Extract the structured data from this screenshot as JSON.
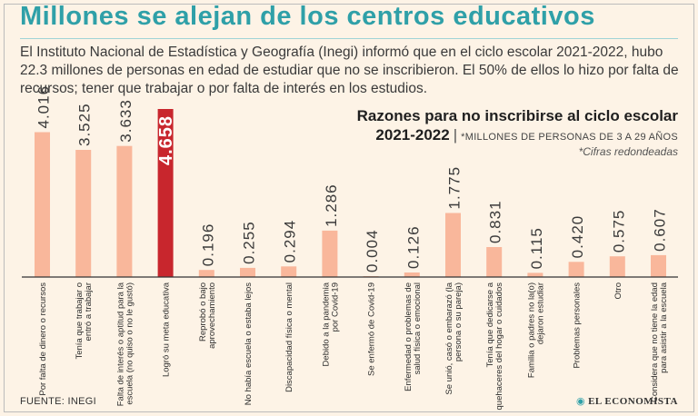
{
  "header": {
    "title": "Millones se alejan de los centros educativos",
    "intro": "El Instituto Nacional de Estadística y Geografía (Inegi) informó que en el ciclo escolar 2021-2022, hubo 22.3 millones de personas en edad de estudiar que no se inscribieron. El 50% de ellos lo hizo por falta de recursos; tener que trabajar o por falta de interés en los estudios."
  },
  "chart_data": {
    "type": "bar",
    "title": "Razones para no inscribirse al ciclo escolar",
    "title_line2": "2021-2022",
    "unit_label": "*MILLONES DE PERSONAS DE 3 A 29 AÑOS",
    "note": "*Cifras redondeadas",
    "categories": [
      [
        "Por falta de dinero o recursos"
      ],
      [
        "Tenía que trabajar o",
        "entró a trabajar"
      ],
      [
        "Falta de interés o aptitud para la",
        "escuela (no quiso o no le gustó)"
      ],
      [
        "Logró su meta educativa"
      ],
      [
        "Reprobó o bajo",
        "aprovechamiento"
      ],
      [
        "No había escuela o estaba lejos"
      ],
      [
        "Discapacidad física o mental"
      ],
      [
        "Debido a la pandemia",
        "por Covid-19"
      ],
      [
        "Se enfermó de Covid-19"
      ],
      [
        "Enfermedad o problemas de",
        "salud física o emocional"
      ],
      [
        "Se unió, casó o embarazó (la",
        "persona o su pareja)"
      ],
      [
        "Tenía que dedicarse a",
        "quehaceres del hogar o cuidados"
      ],
      [
        "Familia o padres no la(o)",
        "dejaron estudiar"
      ],
      [
        "Problemas personales"
      ],
      [
        "Otro"
      ],
      [
        "Considera que no tiene la edad",
        "para asistir a la escuela"
      ]
    ],
    "values": [
      4.016,
      3.525,
      3.633,
      4.658,
      0.196,
      0.255,
      0.294,
      1.286,
      0.004,
      0.126,
      1.775,
      0.831,
      0.115,
      0.42,
      0.575,
      0.607
    ],
    "value_labels": [
      "4.016",
      "3.525",
      "3.633",
      "4.658",
      "0.196",
      "0.255",
      "0.294",
      "1.286",
      "0.004",
      "0.126",
      "1.775",
      "0.831",
      "0.115",
      "0.420",
      "0.575",
      "0.607"
    ],
    "highlight_index": 3,
    "ylim": [
      0,
      4.658
    ],
    "colors": {
      "bar": "#f9b79b",
      "highlight": "#c8262d",
      "label": "#3a3a3a",
      "highlight_label": "#c8262d",
      "baseline": "#333333"
    }
  },
  "footer": {
    "source": "FUENTE: INEGI",
    "brand": "EL ECONOMISTA",
    "brand_icon": "globe-icon"
  }
}
